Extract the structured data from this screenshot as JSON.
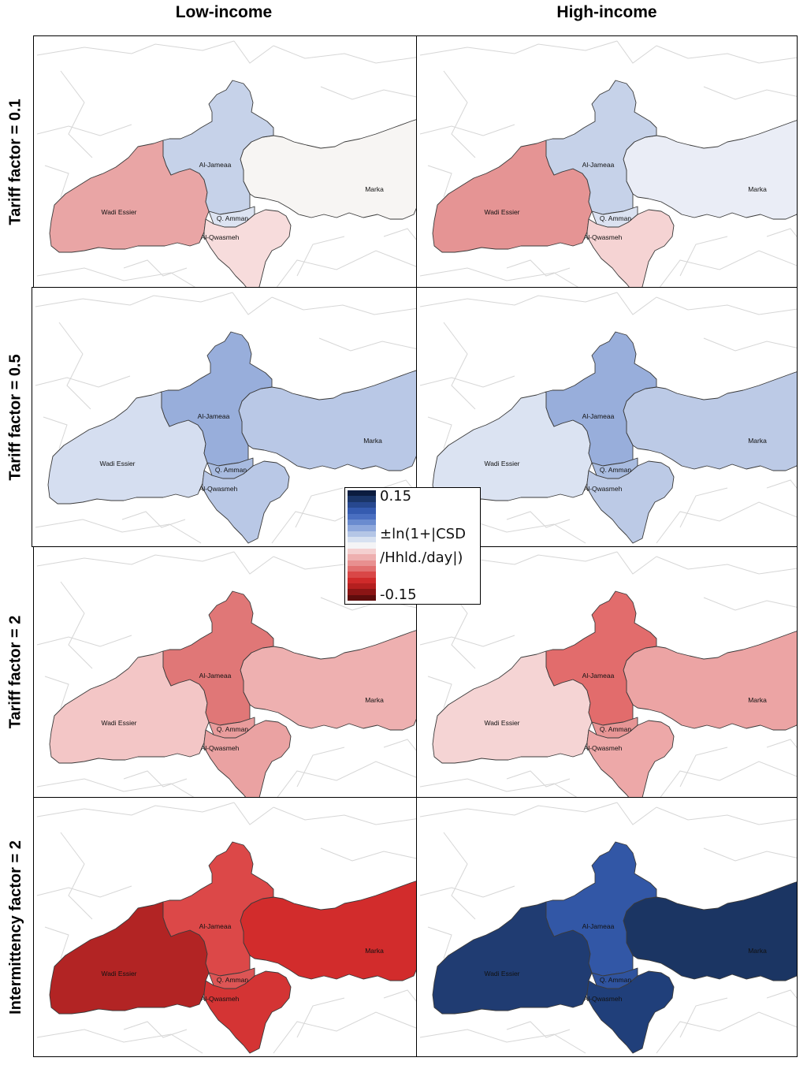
{
  "columns": [
    "Low-income",
    "High-income"
  ],
  "rows": [
    "Tariff factor = 0.1",
    "Tariff factor = 0.5",
    "Tariff factor = 2",
    "Intermittency factor = 2"
  ],
  "district_names": {
    "al_jameaa": "Al-Jameaa",
    "marka": "Marka",
    "wadi_essier": "Wadi Essier",
    "q_amman": "Q. Amman",
    "al_qwasmeh": "Al-Qwasmeh"
  },
  "legend": {
    "max_label": "0.15",
    "min_label": "-0.15",
    "title_line1": "±ln(1+|CSD",
    "title_line2": "/Hhld./day|)",
    "scale_colors": [
      "#0b1c3f",
      "#1a3568",
      "#27488f",
      "#355bb0",
      "#4a6fc1",
      "#6a8bcf",
      "#8ea8dc",
      "#b4c6e6",
      "#d7e1f1",
      "#f4f4f6",
      "#f4d0d0",
      "#eeb0b0",
      "#e89090",
      "#e16f6f",
      "#d94747",
      "#cf2a2a",
      "#b41f1f",
      "#8b1515",
      "#5e0d0d"
    ]
  },
  "maps": [
    {
      "row": 0,
      "col": 0,
      "colors": {
        "al_jameaa": "#c6d2e9",
        "marka": "#f7f5f3",
        "wadi_essier": "#e9a5a5",
        "q_amman": "#dde4f2",
        "al_qwasmeh": "#f7dcdc"
      }
    },
    {
      "row": 0,
      "col": 1,
      "colors": {
        "al_jameaa": "#c6d2e9",
        "marka": "#eaedf6",
        "wadi_essier": "#e59494",
        "q_amman": "#dbe2f1",
        "al_qwasmeh": "#f5d3d3"
      }
    },
    {
      "row": 1,
      "col": 0,
      "colors": {
        "al_jameaa": "#98aedb",
        "marka": "#b9c8e6",
        "wadi_essier": "#d5def0",
        "q_amman": "#a8bbe0",
        "al_qwasmeh": "#b9c8e6"
      }
    },
    {
      "row": 1,
      "col": 1,
      "colors": {
        "al_jameaa": "#98aedb",
        "marka": "#bccae6",
        "wadi_essier": "#dbe3f2",
        "q_amman": "#a9bce0",
        "al_qwasmeh": "#bccae6"
      }
    },
    {
      "row": 2,
      "col": 0,
      "colors": {
        "al_jameaa": "#e07777",
        "marka": "#eeb0b0",
        "wadi_essier": "#f3c6c6",
        "q_amman": "#e99c9c",
        "al_qwasmeh": "#eaa2a2"
      }
    },
    {
      "row": 2,
      "col": 1,
      "colors": {
        "al_jameaa": "#e26c6c",
        "marka": "#eca4a4",
        "wadi_essier": "#f5d4d4",
        "q_amman": "#e79595",
        "al_qwasmeh": "#eda8a8"
      }
    },
    {
      "row": 3,
      "col": 0,
      "colors": {
        "al_jameaa": "#dc4848",
        "marka": "#d22c2c",
        "wadi_essier": "#b22424",
        "q_amman": "#dd5555",
        "al_qwasmeh": "#d43434"
      }
    },
    {
      "row": 3,
      "col": 1,
      "colors": {
        "al_jameaa": "#3257a6",
        "marka": "#1b3563",
        "wadi_essier": "#203c72",
        "q_amman": "#2f539e",
        "al_qwasmeh": "#203f7a"
      }
    }
  ]
}
